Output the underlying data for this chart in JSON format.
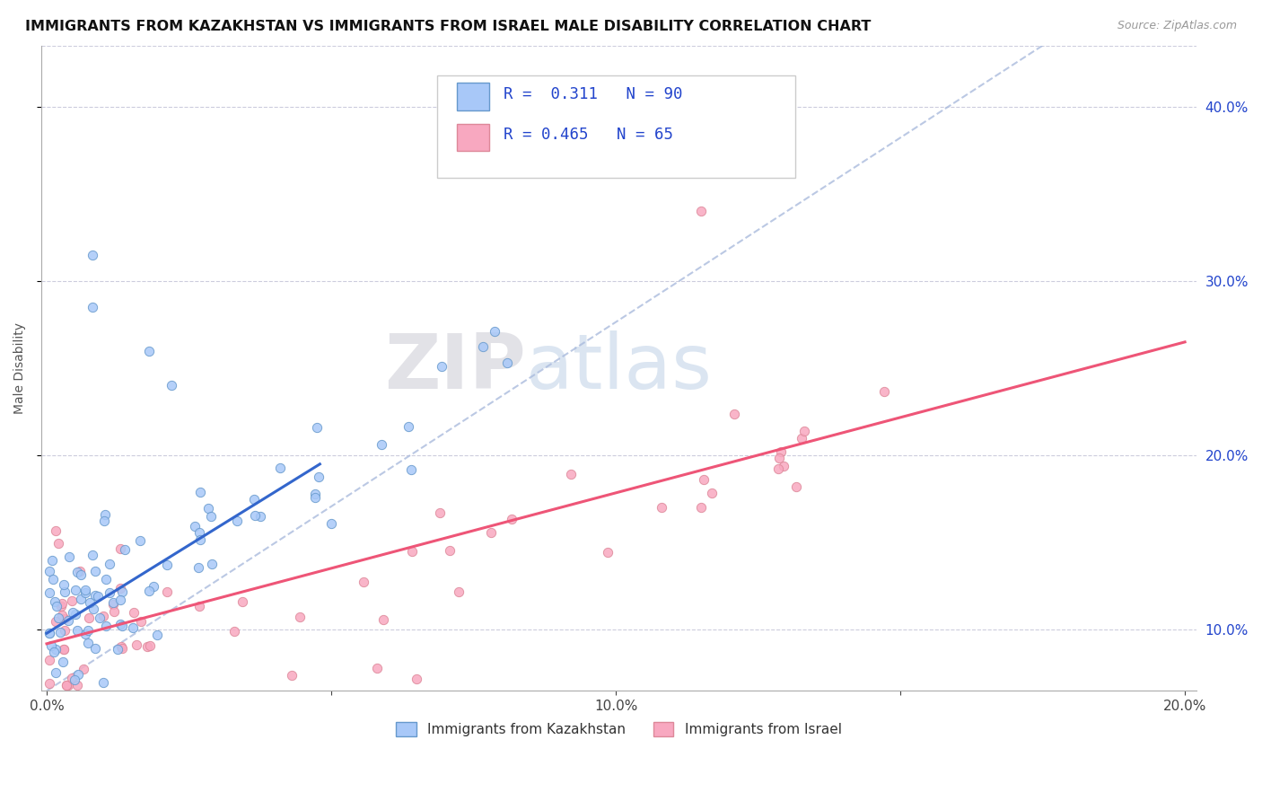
{
  "title": "IMMIGRANTS FROM KAZAKHSTAN VS IMMIGRANTS FROM ISRAEL MALE DISABILITY CORRELATION CHART",
  "source": "Source: ZipAtlas.com",
  "ylabel": "Male Disability",
  "xlim": [
    -0.001,
    0.202
  ],
  "ylim": [
    0.065,
    0.435
  ],
  "yticks": [
    0.1,
    0.2,
    0.3,
    0.4
  ],
  "ytick_labels_right": [
    "10.0%",
    "20.0%",
    "30.0%",
    "40.0%"
  ],
  "xticks": [
    0.0,
    0.05,
    0.1,
    0.15,
    0.2
  ],
  "xtick_labels": [
    "0.0%",
    "",
    "10.0%",
    "",
    "20.0%"
  ],
  "kaz_color": "#a8c8f8",
  "isr_color": "#f8a8c0",
  "kaz_edge": "#6699cc",
  "isr_edge": "#dd8899",
  "trend_kaz_color": "#3366cc",
  "trend_isr_color": "#ee5577",
  "trend_ref_color": "#aabbdd",
  "legend_text_color": "#2244cc",
  "R_kaz": 0.311,
  "N_kaz": 90,
  "R_isr": 0.465,
  "N_isr": 65,
  "watermark_zip": "ZIP",
  "watermark_atlas": "atlas",
  "legend1_label": "Immigrants from Kazakhstan",
  "legend2_label": "Immigrants from Israel",
  "kaz_trend_x0": 0.0,
  "kaz_trend_y0": 0.098,
  "kaz_trend_x1": 0.048,
  "kaz_trend_y1": 0.195,
  "isr_trend_x0": 0.0,
  "isr_trend_y0": 0.092,
  "isr_trend_x1": 0.2,
  "isr_trend_y1": 0.265,
  "ref_line_x0": 0.0,
  "ref_line_y0": 0.065,
  "ref_line_x1": 0.175,
  "ref_line_y1": 0.435
}
